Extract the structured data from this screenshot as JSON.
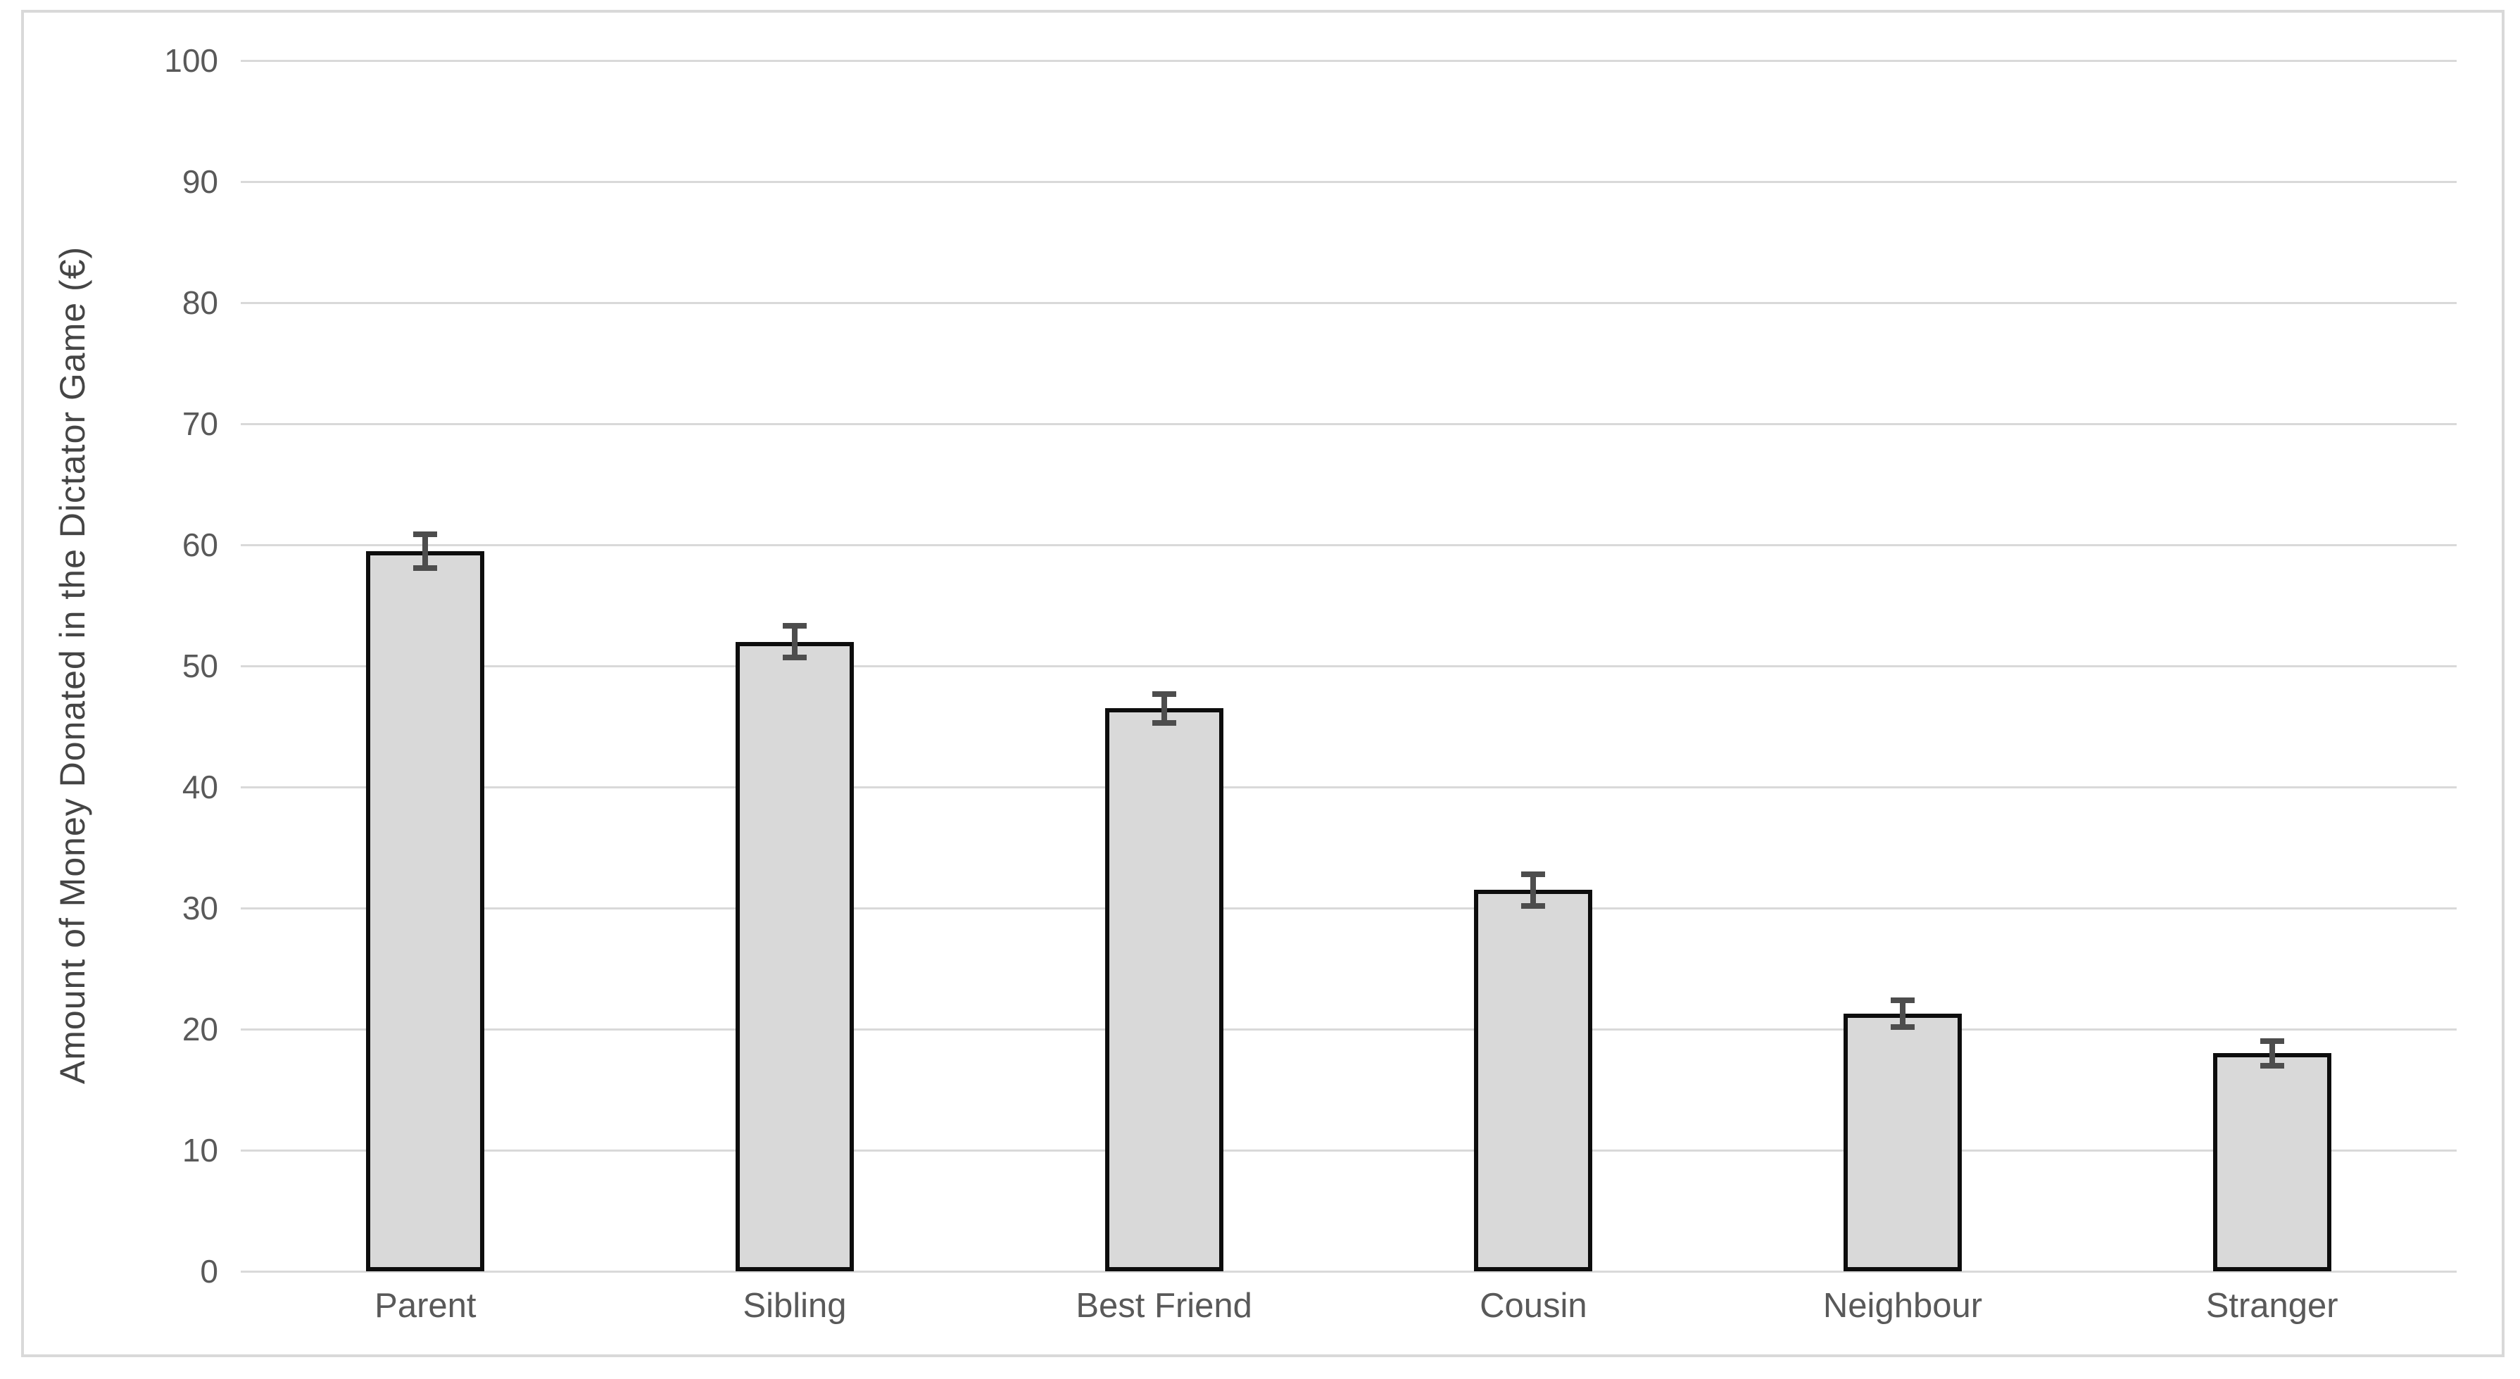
{
  "chart_data": {
    "type": "bar",
    "title": "",
    "categories": [
      "Parent",
      "Sibling",
      "Best Friend",
      "Cousin",
      "Neighbour",
      "Stranger"
    ],
    "values": [
      59.5,
      52,
      46.5,
      31.5,
      21.3,
      18
    ],
    "error_bars": [
      1.4,
      1.3,
      1.2,
      1.3,
      1.1,
      1.0
    ],
    "ylabel": "Amount of Money Donated in the Dictator Game (€)",
    "xlabel": "",
    "ylim": [
      0,
      100
    ],
    "yticks": [
      0,
      10,
      20,
      30,
      40,
      50,
      60,
      70,
      80,
      90,
      100
    ],
    "grid": "horizontal",
    "legend": "none",
    "colors": {
      "bar_fill": "#d9d9d9",
      "bar_border": "#0d0d0d",
      "error_bar": "#4d4d4d",
      "gridline": "#d9d9d9",
      "tick_label": "#595959",
      "axis_title": "#454545",
      "figure_border": "#d9d9d9",
      "background": "#ffffff"
    }
  }
}
